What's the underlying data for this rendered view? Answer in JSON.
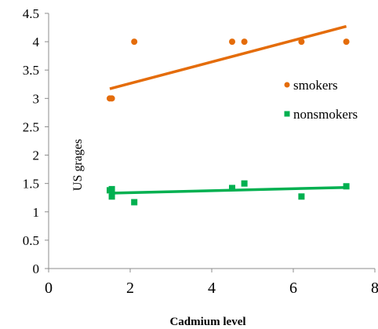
{
  "chart_data": {
    "type": "scatter",
    "title": "",
    "xlabel": "Cadmium level",
    "ylabel": "US grages",
    "xlim": [
      0,
      8
    ],
    "ylim": [
      0,
      4.5
    ],
    "x_ticks": [
      0,
      2,
      4,
      6,
      8
    ],
    "y_ticks": [
      0,
      0.5,
      1,
      1.5,
      2,
      2.5,
      3,
      3.5,
      4,
      4.5
    ],
    "grid": false,
    "legend_position": "right",
    "series": [
      {
        "name": "smokers",
        "color": "#E46C0A",
        "marker": "circle",
        "points": [
          [
            1.5,
            3.0
          ],
          [
            1.55,
            3.0
          ],
          [
            2.1,
            4.0
          ],
          [
            4.5,
            4.0
          ],
          [
            4.8,
            4.0
          ],
          [
            6.2,
            4.0
          ],
          [
            7.3,
            4.0
          ]
        ],
        "trendline": [
          [
            1.5,
            3.17
          ],
          [
            7.3,
            4.27
          ]
        ]
      },
      {
        "name": "nonsmokers",
        "color": "#00B050",
        "marker": "square",
        "points": [
          [
            1.5,
            1.38
          ],
          [
            1.55,
            1.4
          ],
          [
            1.55,
            1.27
          ],
          [
            2.1,
            1.17
          ],
          [
            4.5,
            1.42
          ],
          [
            4.8,
            1.5
          ],
          [
            6.2,
            1.27
          ],
          [
            7.3,
            1.45
          ]
        ],
        "trendline": [
          [
            1.5,
            1.33
          ],
          [
            7.3,
            1.43
          ]
        ]
      }
    ]
  }
}
